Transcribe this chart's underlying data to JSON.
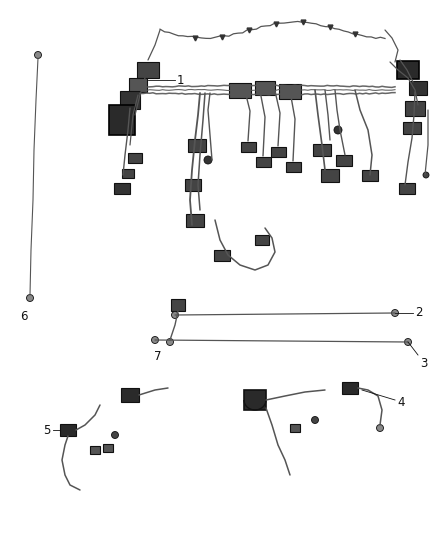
{
  "background_color": "#ffffff",
  "line_color": "#444444",
  "dark_color": "#111111",
  "connector_color": "#333333",
  "wire_color": "#555555",
  "fig_width": 4.38,
  "fig_height": 5.33,
  "dpi": 100
}
